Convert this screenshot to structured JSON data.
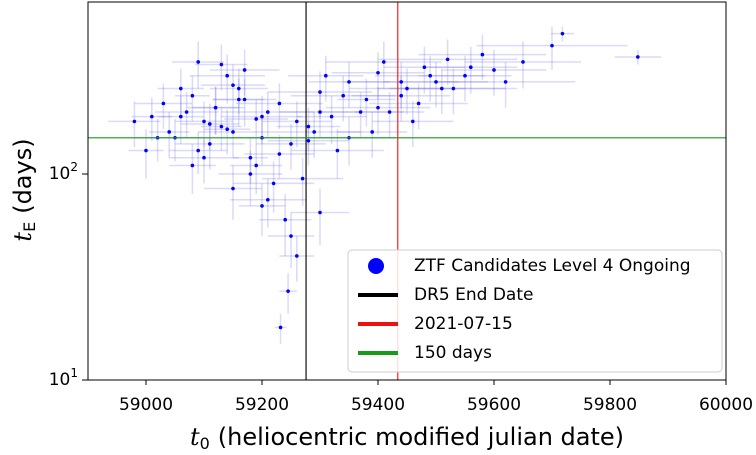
{
  "chart_data": {
    "type": "scatter",
    "xlabel": {
      "symbol": "t",
      "subscript": "0",
      "text": "(heliocentric modified julian date)"
    },
    "ylabel": {
      "symbol": "t",
      "subscript": "E",
      "text": "(days)"
    },
    "xlim": [
      58900,
      60000
    ],
    "ylim": [
      10,
      684
    ],
    "log_y": true,
    "xticks": [
      59000,
      59200,
      59400,
      59600,
      59800,
      60000
    ],
    "yticks": [
      {
        "value": 10,
        "label": "10",
        "exponent": "1"
      },
      {
        "value": 100,
        "label": "10",
        "exponent": "2"
      }
    ],
    "legend_loc": "lower right",
    "series": [
      {
        "name": "ZTF Candidates Level 4 Ongoing",
        "color": "#0000ff",
        "error_color": "#6a6ae8",
        "x": [
          59100,
          59120,
          59150,
          59080,
          59200,
          59050,
          59170,
          59130,
          59210,
          59250,
          59060,
          59090,
          59140,
          59180,
          59230,
          59280,
          59300,
          59320,
          59350,
          59380,
          59400,
          59420,
          59450,
          59480,
          59500,
          59520,
          59550,
          59580,
          59600,
          59650,
          59700,
          59718,
          59848,
          59030,
          59010,
          58980,
          59020,
          59070,
          59110,
          59160,
          59190,
          59220,
          59260,
          59290,
          59310,
          59340,
          59370,
          59390,
          59410,
          59440,
          59460,
          59490,
          59530,
          59560,
          59620,
          59150,
          59200,
          59240,
          59180,
          59100,
          59130,
          59210,
          59270,
          59330,
          59250,
          59232,
          59245,
          59260,
          59300,
          59150,
          59170,
          59090,
          59060,
          59120,
          59200,
          59300,
          59350,
          59400,
          59440,
          59470,
          59510,
          59140,
          59110,
          59190,
          59230,
          59280,
          59160,
          59080,
          59040,
          59000
        ],
        "values": [
          180,
          210,
          160,
          240,
          190,
          150,
          230,
          170,
          200,
          140,
          260,
          130,
          300,
          120,
          220,
          170,
          250,
          190,
          280,
          230,
          310,
          200,
          260,
          330,
          280,
          360,
          300,
          380,
          320,
          350,
          420,
          480,
          370,
          220,
          190,
          180,
          150,
          200,
          140,
          260,
          110,
          90,
          180,
          160,
          300,
          240,
          200,
          160,
          350,
          240,
          180,
          300,
          260,
          330,
          280,
          85,
          70,
          60,
          100,
          120,
          340,
          75,
          95,
          130,
          50,
          18,
          27,
          40,
          65,
          270,
          320,
          350,
          190,
          210,
          150,
          200,
          150,
          210,
          280,
          220,
          260,
          165,
          175,
          185,
          125,
          145,
          230,
          110,
          160,
          130
        ],
        "xerr": [
          50,
          40,
          60,
          30,
          70,
          45,
          55,
          35,
          80,
          60,
          40,
          50,
          65,
          30,
          75,
          55,
          90,
          60,
          70,
          50,
          80,
          60,
          100,
          70,
          90,
          120,
          80,
          110,
          90,
          100,
          130,
          20,
          40,
          50,
          35,
          45,
          40,
          55,
          60,
          50,
          45,
          70,
          60,
          80,
          65,
          90,
          75,
          60,
          100,
          85,
          70,
          95,
          110,
          80,
          120,
          50,
          40,
          45,
          55,
          60,
          45,
          65,
          70,
          80,
          40,
          10,
          15,
          30,
          50,
          55,
          60,
          45,
          40,
          50,
          55,
          70,
          80,
          90,
          100,
          85,
          110,
          40,
          50,
          55,
          60,
          70,
          45,
          40,
          35,
          30
        ],
        "yerr": [
          45,
          55,
          40,
          60,
          50,
          35,
          60,
          40,
          50,
          35,
          65,
          30,
          80,
          30,
          55,
          40,
          65,
          50,
          70,
          60,
          80,
          50,
          65,
          85,
          70,
          90,
          75,
          95,
          80,
          90,
          100,
          40,
          30,
          55,
          45,
          45,
          35,
          50,
          35,
          65,
          30,
          25,
          45,
          40,
          75,
          60,
          50,
          40,
          90,
          60,
          45,
          75,
          65,
          85,
          70,
          25,
          20,
          20,
          30,
          30,
          85,
          20,
          25,
          35,
          15,
          3,
          6,
          10,
          20,
          70,
          80,
          90,
          50,
          55,
          40,
          50,
          40,
          55,
          70,
          55,
          65,
          40,
          45,
          45,
          30,
          35,
          60,
          30,
          40,
          35
        ]
      }
    ],
    "reference_lines": [
      {
        "name": "DR5 End Date",
        "orientation": "vertical",
        "value": 59276,
        "color": "#000000"
      },
      {
        "name": "2021-07-15",
        "orientation": "vertical",
        "value": 59434,
        "color": "#ee1111"
      },
      {
        "name": "150 days",
        "orientation": "horizontal",
        "value": 150,
        "color": "#1a9a1a"
      }
    ]
  }
}
